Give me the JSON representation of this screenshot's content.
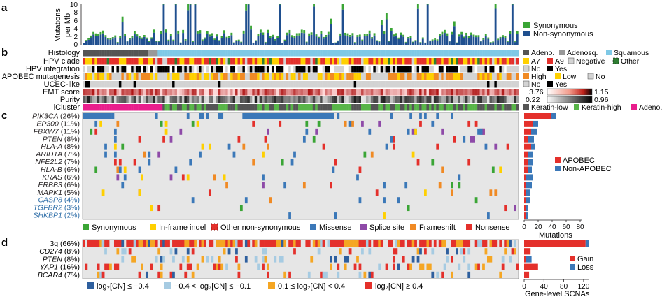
{
  "panels": {
    "a": "a",
    "b": "b",
    "c": "c",
    "d": "d"
  },
  "colors": {
    "synonymous": "#3aa535",
    "nonsyn": "#1f4f8f",
    "missense": "#3b78b8",
    "splice": "#8e4aa8",
    "frameshift": "#f08a24",
    "nonsense": "#e4302b",
    "inframe": "#ffd000",
    "other": "#e4302b",
    "gain": "#e4302b",
    "loss": "#3b78b8",
    "weakgain": "#f5a623",
    "weakloss": "#a6cbe2",
    "bg": "#e6e6e6",
    "squamous": "#7fc9e6",
    "adeno": "#555555",
    "adenosq": "#999999",
    "a7": "#ffd000",
    "a9": "#e4302b",
    "keratin_low": "#555555",
    "keratin_high": "#58b548",
    "ic_adeno": "#e91e8c"
  },
  "panel_a": {
    "ylabel_line1": "Mutations",
    "ylabel_line2": "per Mb",
    "yticks": [
      "0",
      "2",
      "4",
      "6",
      "8",
      "10"
    ],
    "legend": [
      "Synonymous",
      "Non-synonymous"
    ]
  },
  "panel_b": {
    "tracks": [
      "Histology",
      "HPV clade",
      "HPV integration",
      "APOBEC mutagenesis",
      "UCEC-like",
      "EMT score",
      "Purity",
      "iCluster"
    ],
    "legend": {
      "histology": [
        "Adeno.",
        "Adenosq.",
        "Squamous"
      ],
      "clade": [
        "A7",
        "A9",
        "Negative",
        "Other"
      ],
      "integration": [
        "No",
        "Yes"
      ],
      "apobec": [
        "High",
        "Low",
        "No"
      ],
      "ucec": [
        "No",
        "Yes"
      ],
      "emt": [
        "−3.76",
        "1.15"
      ],
      "purity": [
        "0.22",
        "0.96"
      ],
      "icluster": [
        "Keratin-low",
        "Keratin-high",
        "Adeno."
      ]
    }
  },
  "panel_c": {
    "genes": [
      {
        "name": "PIK3CA",
        "pct": "(26%)",
        "italic": true,
        "blue": false
      },
      {
        "name": "EP300",
        "pct": "(11%)",
        "italic": true,
        "blue": false
      },
      {
        "name": "FBXW7",
        "pct": "(11%)",
        "italic": true,
        "blue": false
      },
      {
        "name": "PTEN",
        "pct": "(8%)",
        "italic": true,
        "blue": false
      },
      {
        "name": "HLA-A",
        "pct": "(8%)",
        "italic": true,
        "blue": false
      },
      {
        "name": "ARID1A",
        "pct": "(7%)",
        "italic": true,
        "blue": false
      },
      {
        "name": "NFE2L2",
        "pct": "(7%)",
        "italic": true,
        "blue": false
      },
      {
        "name": "HLA-B",
        "pct": "(6%)",
        "italic": true,
        "blue": false
      },
      {
        "name": "KRAS",
        "pct": "(6%)",
        "italic": true,
        "blue": false
      },
      {
        "name": "ERBB3",
        "pct": "(6%)",
        "italic": true,
        "blue": false
      },
      {
        "name": "MAPK1",
        "pct": "(5%)",
        "italic": true,
        "blue": false
      },
      {
        "name": "CASP8",
        "pct": "(4%)",
        "italic": true,
        "blue": true
      },
      {
        "name": "TGFBR2",
        "pct": "(3%)",
        "italic": true,
        "blue": true
      },
      {
        "name": "SHKBP1",
        "pct": "(2%)",
        "italic": true,
        "blue": true
      }
    ],
    "legend": [
      "Synonymous",
      "In-frame indel",
      "Other non-synonymous",
      "Missense",
      "Splice site",
      "Frameshift",
      "Nonsense"
    ],
    "bar_legend": [
      "APOBEC",
      "Non-APOBEC"
    ],
    "xticks": [
      "0",
      "20",
      "40",
      "60",
      "80"
    ],
    "xlabel": "Mutations",
    "bar_values": [
      {
        "apobec": 38,
        "non": 8
      },
      {
        "apobec": 12,
        "non": 8
      },
      {
        "apobec": 10,
        "non": 8
      },
      {
        "apobec": 6,
        "non": 8
      },
      {
        "apobec": 10,
        "non": 6
      },
      {
        "apobec": 6,
        "non": 6
      },
      {
        "apobec": 6,
        "non": 6
      },
      {
        "apobec": 5,
        "non": 6
      },
      {
        "apobec": 3,
        "non": 9
      },
      {
        "apobec": 3,
        "non": 8
      },
      {
        "apobec": 3,
        "non": 6
      },
      {
        "apobec": 3,
        "non": 5
      },
      {
        "apobec": 2,
        "non": 4
      },
      {
        "apobec": 2,
        "non": 3
      }
    ],
    "bar_max": 80
  },
  "panel_d": {
    "genes": [
      {
        "name": "3q",
        "pct": "(66%)",
        "italic": false
      },
      {
        "name": "CD274",
        "pct": "(8%)",
        "italic": true
      },
      {
        "name": "PTEN",
        "pct": "(8%)",
        "italic": true
      },
      {
        "name": "YAP1",
        "pct": "(16%)",
        "italic": true
      },
      {
        "name": "BCAR4",
        "pct": "(7%)",
        "italic": true
      }
    ],
    "legend": [
      "log₂[CN] ≤ −0.4",
      "−0.4 < log₂[CN] ≤ −0.1",
      "0.1 ≤ log₂[CN] < 0.4",
      "log₂[CN] ≥ 0.4"
    ],
    "bar_legend": [
      "Gain",
      "Loss"
    ],
    "xticks": [
      "0",
      "40",
      "80",
      "120"
    ],
    "xlabel": "Gene-level SCNAs",
    "bar_values": [
      {
        "gain": 124,
        "loss": 6
      },
      {
        "gain": 13,
        "loss": 0
      },
      {
        "gain": 3,
        "loss": 12
      },
      {
        "gain": 28,
        "loss": 0
      },
      {
        "gain": 10,
        "loss": 0
      }
    ],
    "bar_max": 130
  }
}
